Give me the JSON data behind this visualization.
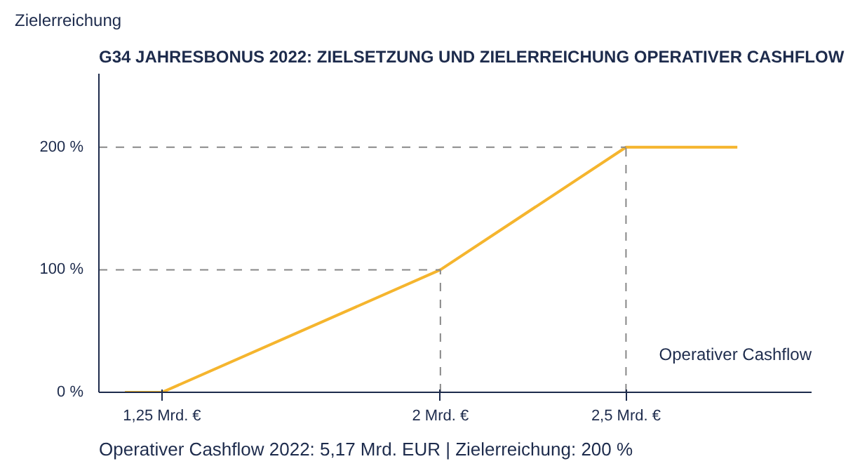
{
  "chart_data": {
    "type": "line",
    "title": "G34  JAHRESBONUS 2022: ZIELSETZUNG UND ZIELERREICHUNG OPERATIVER CASHFLOW",
    "xlabel": "Operativer Cashflow",
    "ylabel": "Zielerreichung",
    "x": [
      1.15,
      1.25,
      2,
      2.5,
      2.8
    ],
    "series": [
      {
        "color": "#f5b52e",
        "values": [
          0,
          0,
          100,
          200,
          200
        ]
      }
    ],
    "xlim": [
      1.08,
      3.0
    ],
    "ylim": [
      0,
      260
    ],
    "xticks": [
      {
        "value": 1.25,
        "label": "1,25 Mrd. €"
      },
      {
        "value": 2,
        "label": "2 Mrd. €"
      },
      {
        "value": 2.5,
        "label": "2,5 Mrd. €"
      }
    ],
    "yticks": [
      {
        "value": 0,
        "label": "0 %"
      },
      {
        "value": 100,
        "label": "100 %"
      },
      {
        "value": 200,
        "label": "200 %"
      }
    ],
    "ref_lines": [
      {
        "axis": "y",
        "value": 100,
        "color": "#888888",
        "line_style": "dashed"
      },
      {
        "axis": "y",
        "value": 200,
        "color": "#888888",
        "line_style": "dashed"
      },
      {
        "axis": "x",
        "value": 2,
        "color": "#888888",
        "line_style": "dashed"
      },
      {
        "axis": "x",
        "value": 2.5,
        "color": "#888888",
        "line_style": "dashed"
      }
    ],
    "annotations": [
      "Operativer Cashflow 2022: 5,17 Mrd. EUR   |   Zielerreichung: 200 %"
    ],
    "grid": false,
    "marker": "none",
    "line_style": "solid"
  }
}
